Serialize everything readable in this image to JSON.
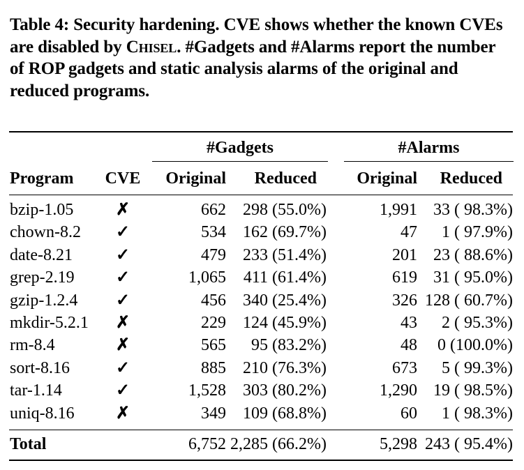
{
  "caption": {
    "label": "Table 4: Security hardening. CVE shows whether the known CVEs are disabled by ",
    "tool": "Chisel",
    "rest": ". #Gadgets and #Alarms report the number of ROP gadgets and static analysis alarms of the original and reduced programs."
  },
  "header": {
    "group_gadgets": "#Gadgets",
    "group_alarms": "#Alarms",
    "program": "Program",
    "cve": "CVE",
    "orig1": "Original",
    "red1": "Reduced",
    "orig2": "Original",
    "red2": "Reduced"
  },
  "rows": [
    {
      "program": "bzip-1.05",
      "cve": "✗",
      "g_orig": "662",
      "g_red": "298 (55.0%)",
      "a_orig": "1,991",
      "a_red": "33 ( 98.3%)"
    },
    {
      "program": "chown-8.2",
      "cve": "✓",
      "g_orig": "534",
      "g_red": "162 (69.7%)",
      "a_orig": "47",
      "a_red": "1 ( 97.9%)"
    },
    {
      "program": "date-8.21",
      "cve": "✓",
      "g_orig": "479",
      "g_red": "233 (51.4%)",
      "a_orig": "201",
      "a_red": "23 ( 88.6%)"
    },
    {
      "program": "grep-2.19",
      "cve": "✓",
      "g_orig": "1,065",
      "g_red": "411 (61.4%)",
      "a_orig": "619",
      "a_red": "31 ( 95.0%)"
    },
    {
      "program": "gzip-1.2.4",
      "cve": "✓",
      "g_orig": "456",
      "g_red": "340 (25.4%)",
      "a_orig": "326",
      "a_red": "128 ( 60.7%)"
    },
    {
      "program": "mkdir-5.2.1",
      "cve": "✗",
      "g_orig": "229",
      "g_red": "124 (45.9%)",
      "a_orig": "43",
      "a_red": "2 ( 95.3%)"
    },
    {
      "program": "rm-8.4",
      "cve": "✗",
      "g_orig": "565",
      "g_red": "95 (83.2%)",
      "a_orig": "48",
      "a_red": "0 (100.0%)"
    },
    {
      "program": "sort-8.16",
      "cve": "✓",
      "g_orig": "885",
      "g_red": "210 (76.3%)",
      "a_orig": "673",
      "a_red": "5 ( 99.3%)"
    },
    {
      "program": "tar-1.14",
      "cve": "✓",
      "g_orig": "1,528",
      "g_red": "303 (80.2%)",
      "a_orig": "1,290",
      "a_red": "19 ( 98.5%)"
    },
    {
      "program": "uniq-8.16",
      "cve": "✗",
      "g_orig": "349",
      "g_red": "109 (68.8%)",
      "a_orig": "60",
      "a_red": "1 ( 98.3%)"
    }
  ],
  "total": {
    "label": "Total",
    "g_orig": "6,752",
    "g_red": "2,285 (66.2%)",
    "a_orig": "5,298",
    "a_red": "243 ( 95.4%)"
  }
}
